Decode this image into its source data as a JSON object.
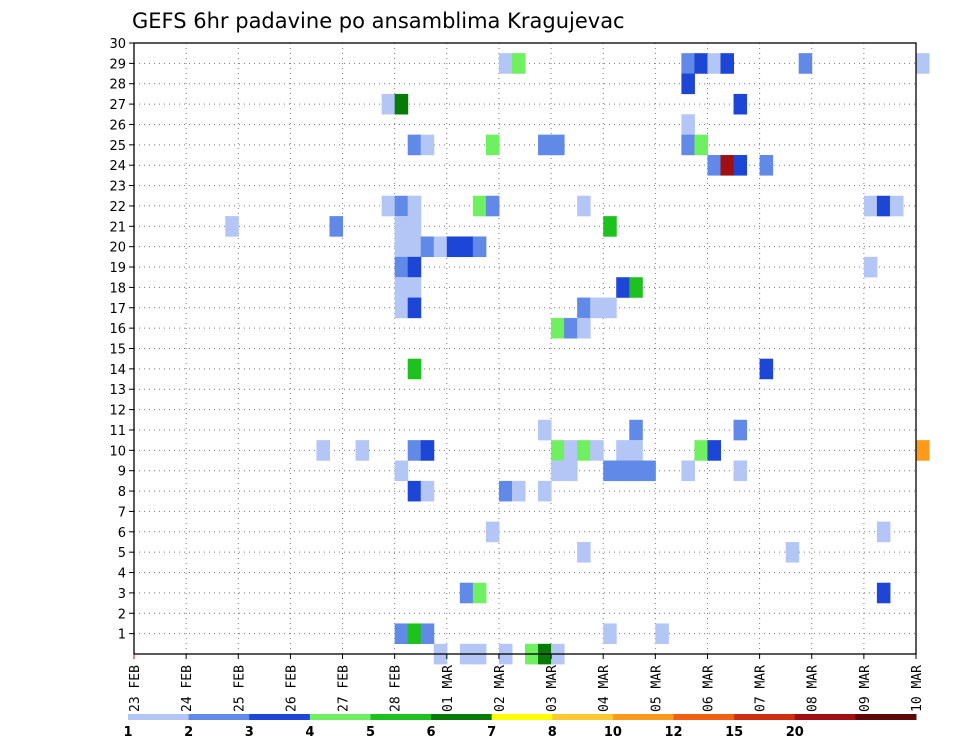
{
  "chart_data": {
    "type": "heatmap",
    "title": "GEFS 6hr padavine po ansamblima Kragujevac",
    "xlabel": "",
    "ylabel": "",
    "x_tick_labels": [
      "23 FEB",
      "24 FEB",
      "25 FEB",
      "26 FEB",
      "27 FEB",
      "28 FEB",
      "01 MAR",
      "02 MAR",
      "03 MAR",
      "04 MAR",
      "05 MAR",
      "06 MAR",
      "07 MAR",
      "08 MAR",
      "09 MAR",
      "10 MAR"
    ],
    "y_ticks": [
      1,
      2,
      3,
      4,
      5,
      6,
      7,
      8,
      9,
      10,
      11,
      12,
      13,
      14,
      15,
      16,
      17,
      18,
      19,
      20,
      21,
      22,
      23,
      24,
      25,
      26,
      27,
      28,
      29,
      30
    ],
    "ylim": [
      0,
      30
    ],
    "grid": true,
    "legend": {
      "position": "bottom",
      "bins": [
        {
          "label": "1",
          "color": "#b3c6f5"
        },
        {
          "label": "2",
          "color": "#6089e8"
        },
        {
          "label": "3",
          "color": "#1d45d6"
        },
        {
          "label": "4",
          "color": "#6ff060"
        },
        {
          "label": "5",
          "color": "#1ec21e"
        },
        {
          "label": "6",
          "color": "#087a08"
        },
        {
          "label": "7",
          "color": "#ffff00"
        },
        {
          "label": "8",
          "color": "#fdc830"
        },
        {
          "label": "10",
          "color": "#fd9a1a"
        },
        {
          "label": "12",
          "color": "#f06010"
        },
        {
          "label": "15",
          "color": "#d02e10"
        },
        {
          "label": "20",
          "color": "#a01010"
        },
        {
          "label": "",
          "color": "#600808"
        }
      ]
    },
    "cells_note": "day = days since 23 FEB 00Z, each cell spans 6 hours; member = ensemble member; level = color bin index 0-12",
    "cells": [
      {
        "day": 4.75,
        "member": 27,
        "level": 0
      },
      {
        "day": 5.0,
        "member": 27,
        "level": 5
      },
      {
        "day": 7.0,
        "member": 29,
        "level": 0
      },
      {
        "day": 7.25,
        "member": 29,
        "level": 3
      },
      {
        "day": 10.5,
        "member": 29,
        "level": 1
      },
      {
        "day": 10.75,
        "member": 29,
        "level": 2
      },
      {
        "day": 11.0,
        "member": 29,
        "level": 0
      },
      {
        "day": 11.25,
        "member": 29,
        "level": 2
      },
      {
        "day": 12.75,
        "member": 29,
        "level": 1
      },
      {
        "day": 15.0,
        "member": 29,
        "level": 0
      },
      {
        "day": 10.5,
        "member": 28,
        "level": 2
      },
      {
        "day": 11.5,
        "member": 27,
        "level": 2
      },
      {
        "day": 10.5,
        "member": 26,
        "level": 0
      },
      {
        "day": 5.25,
        "member": 25,
        "level": 1
      },
      {
        "day": 5.5,
        "member": 25,
        "level": 0
      },
      {
        "day": 6.75,
        "member": 25,
        "level": 3
      },
      {
        "day": 7.75,
        "member": 25,
        "level": 1
      },
      {
        "day": 8.0,
        "member": 25,
        "level": 1
      },
      {
        "day": 10.5,
        "member": 25,
        "level": 1
      },
      {
        "day": 10.75,
        "member": 25,
        "level": 3
      },
      {
        "day": 11.0,
        "member": 24,
        "level": 1
      },
      {
        "day": 11.25,
        "member": 24,
        "level": 11
      },
      {
        "day": 11.5,
        "member": 24,
        "level": 2
      },
      {
        "day": 12.0,
        "member": 24,
        "level": 1
      },
      {
        "day": 4.75,
        "member": 22,
        "level": 0
      },
      {
        "day": 5.0,
        "member": 22,
        "level": 1
      },
      {
        "day": 5.25,
        "member": 22,
        "level": 0
      },
      {
        "day": 6.5,
        "member": 22,
        "level": 3
      },
      {
        "day": 6.75,
        "member": 22,
        "level": 1
      },
      {
        "day": 8.5,
        "member": 22,
        "level": 0
      },
      {
        "day": 14.0,
        "member": 22,
        "level": 0
      },
      {
        "day": 14.25,
        "member": 22,
        "level": 2
      },
      {
        "day": 14.5,
        "member": 22,
        "level": 0
      },
      {
        "day": 1.75,
        "member": 21,
        "level": 0
      },
      {
        "day": 3.75,
        "member": 21,
        "level": 1
      },
      {
        "day": 5.0,
        "member": 21,
        "level": 0
      },
      {
        "day": 5.25,
        "member": 21,
        "level": 0
      },
      {
        "day": 9.0,
        "member": 21,
        "level": 4
      },
      {
        "day": 5.0,
        "member": 20,
        "level": 0
      },
      {
        "day": 5.25,
        "member": 20,
        "level": 0
      },
      {
        "day": 5.5,
        "member": 20,
        "level": 1
      },
      {
        "day": 5.75,
        "member": 20,
        "level": 0
      },
      {
        "day": 6.0,
        "member": 20,
        "level": 2
      },
      {
        "day": 6.25,
        "member": 20,
        "level": 2
      },
      {
        "day": 6.5,
        "member": 20,
        "level": 1
      },
      {
        "day": 5.0,
        "member": 19,
        "level": 1
      },
      {
        "day": 5.25,
        "member": 19,
        "level": 2
      },
      {
        "day": 14.0,
        "member": 19,
        "level": 0
      },
      {
        "day": 5.0,
        "member": 18,
        "level": 0
      },
      {
        "day": 5.25,
        "member": 18,
        "level": 0
      },
      {
        "day": 9.25,
        "member": 18,
        "level": 2
      },
      {
        "day": 9.5,
        "member": 18,
        "level": 4
      },
      {
        "day": 5.0,
        "member": 17,
        "level": 0
      },
      {
        "day": 5.25,
        "member": 17,
        "level": 2
      },
      {
        "day": 8.5,
        "member": 17,
        "level": 1
      },
      {
        "day": 8.75,
        "member": 17,
        "level": 0
      },
      {
        "day": 9.0,
        "member": 17,
        "level": 0
      },
      {
        "day": 8.0,
        "member": 16,
        "level": 3
      },
      {
        "day": 8.25,
        "member": 16,
        "level": 1
      },
      {
        "day": 8.5,
        "member": 16,
        "level": 0
      },
      {
        "day": 5.25,
        "member": 14,
        "level": 4
      },
      {
        "day": 12.0,
        "member": 14,
        "level": 2
      },
      {
        "day": 9.5,
        "member": 11,
        "level": 1
      },
      {
        "day": 11.5,
        "member": 11,
        "level": 1
      },
      {
        "day": 7.75,
        "member": 11,
        "level": 0
      },
      {
        "day": 3.5,
        "member": 10,
        "level": 0
      },
      {
        "day": 4.25,
        "member": 10,
        "level": 0
      },
      {
        "day": 5.25,
        "member": 10,
        "level": 1
      },
      {
        "day": 5.5,
        "member": 10,
        "level": 2
      },
      {
        "day": 8.0,
        "member": 10,
        "level": 3
      },
      {
        "day": 8.25,
        "member": 10,
        "level": 0
      },
      {
        "day": 8.5,
        "member": 10,
        "level": 3
      },
      {
        "day": 8.75,
        "member": 10,
        "level": 0
      },
      {
        "day": 9.25,
        "member": 10,
        "level": 0
      },
      {
        "day": 9.5,
        "member": 10,
        "level": 0
      },
      {
        "day": 10.75,
        "member": 10,
        "level": 3
      },
      {
        "day": 11.0,
        "member": 10,
        "level": 2
      },
      {
        "day": 15.0,
        "member": 10,
        "level": 8
      },
      {
        "day": 5.0,
        "member": 9,
        "level": 0
      },
      {
        "day": 8.0,
        "member": 9,
        "level": 0
      },
      {
        "day": 8.25,
        "member": 9,
        "level": 0
      },
      {
        "day": 9.0,
        "member": 9,
        "level": 1
      },
      {
        "day": 9.25,
        "member": 9,
        "level": 1
      },
      {
        "day": 9.5,
        "member": 9,
        "level": 1
      },
      {
        "day": 9.75,
        "member": 9,
        "level": 1
      },
      {
        "day": 10.5,
        "member": 9,
        "level": 0
      },
      {
        "day": 11.5,
        "member": 9,
        "level": 0
      },
      {
        "day": 5.25,
        "member": 8,
        "level": 2
      },
      {
        "day": 5.5,
        "member": 8,
        "level": 0
      },
      {
        "day": 7.0,
        "member": 8,
        "level": 1
      },
      {
        "day": 7.25,
        "member": 8,
        "level": 0
      },
      {
        "day": 7.75,
        "member": 8,
        "level": 0
      },
      {
        "day": 6.75,
        "member": 6,
        "level": 0
      },
      {
        "day": 14.25,
        "member": 6,
        "level": 0
      },
      {
        "day": 8.5,
        "member": 5,
        "level": 0
      },
      {
        "day": 12.5,
        "member": 5,
        "level": 0
      },
      {
        "day": 6.25,
        "member": 3,
        "level": 1
      },
      {
        "day": 6.5,
        "member": 3,
        "level": 3
      },
      {
        "day": 14.25,
        "member": 3,
        "level": 2
      },
      {
        "day": 5.0,
        "member": 1,
        "level": 1
      },
      {
        "day": 5.25,
        "member": 1,
        "level": 4
      },
      {
        "day": 5.5,
        "member": 1,
        "level": 1
      },
      {
        "day": 9.0,
        "member": 1,
        "level": 0
      },
      {
        "day": 10.0,
        "member": 1,
        "level": 0
      },
      {
        "day": 5.75,
        "member": 0,
        "level": 0
      },
      {
        "day": 6.25,
        "member": 0,
        "level": 0
      },
      {
        "day": 6.5,
        "member": 0,
        "level": 0
      },
      {
        "day": 7.0,
        "member": 0,
        "level": 0
      },
      {
        "day": 7.5,
        "member": 0,
        "level": 3
      },
      {
        "day": 7.75,
        "member": 0,
        "level": 5
      },
      {
        "day": 8.0,
        "member": 0,
        "level": 0
      }
    ]
  }
}
